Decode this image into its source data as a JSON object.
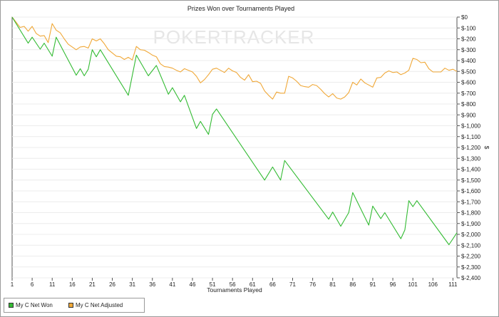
{
  "chart_data": {
    "type": "line",
    "title": "Prizes Won over Tournaments Played",
    "xlabel": "Tournaments Played",
    "ylabel": "$",
    "xlim": [
      1,
      112
    ],
    "ylim": [
      -2400,
      0
    ],
    "x_ticks": [
      1,
      6,
      11,
      16,
      21,
      26,
      31,
      36,
      41,
      46,
      51,
      56,
      61,
      66,
      71,
      76,
      81,
      86,
      91,
      96,
      101,
      106,
      111
    ],
    "y_ticks": [
      0,
      -100,
      -200,
      -300,
      -400,
      -500,
      -600,
      -700,
      -800,
      -900,
      -1000,
      -1100,
      -1200,
      -1300,
      -1400,
      -1500,
      -1600,
      -1700,
      -1800,
      -1900,
      -2000,
      -2100,
      -2200,
      -2300,
      -2400
    ],
    "y_tick_labels": [
      "$0",
      "$-100",
      "$-200",
      "$-300",
      "$-400",
      "$-500",
      "$-600",
      "$-700",
      "$-800",
      "$-900",
      "$-1,000",
      "$-1,100",
      "$-1,200",
      "$-1,300",
      "$-1,400",
      "$-1,500",
      "$-1,600",
      "$-1,700",
      "$-1,800",
      "$-1,900",
      "$-2,000",
      "$-2,100",
      "$-2,200",
      "$-2,300",
      "$-2,400"
    ],
    "watermark": "POKERTRACKER",
    "grid": true,
    "legend_position": "bottom-left",
    "series": [
      {
        "name": "My C Net Won",
        "color": "#33bb33",
        "points": [
          [
            1,
            0
          ],
          [
            5,
            -240
          ],
          [
            6,
            -185
          ],
          [
            8,
            -295
          ],
          [
            9,
            -240
          ],
          [
            11,
            -360
          ],
          [
            12,
            -185
          ],
          [
            17,
            -535
          ],
          [
            18,
            -475
          ],
          [
            19,
            -540
          ],
          [
            20,
            -480
          ],
          [
            21,
            -300
          ],
          [
            22,
            -365
          ],
          [
            23,
            -300
          ],
          [
            30,
            -720
          ],
          [
            32,
            -350
          ],
          [
            35,
            -540
          ],
          [
            37,
            -445
          ],
          [
            40,
            -710
          ],
          [
            41,
            -650
          ],
          [
            43,
            -780
          ],
          [
            44,
            -720
          ],
          [
            47,
            -1025
          ],
          [
            48,
            -960
          ],
          [
            50,
            -1080
          ],
          [
            51,
            -895
          ],
          [
            52,
            -845
          ],
          [
            64,
            -1500
          ],
          [
            66,
            -1380
          ],
          [
            68,
            -1500
          ],
          [
            69,
            -1320
          ],
          [
            80,
            -1860
          ],
          [
            81,
            -1795
          ],
          [
            83,
            -1925
          ],
          [
            85,
            -1800
          ],
          [
            86,
            -1615
          ],
          [
            90,
            -1915
          ],
          [
            91,
            -1740
          ],
          [
            93,
            -1855
          ],
          [
            94,
            -1800
          ],
          [
            98,
            -2040
          ],
          [
            99,
            -1960
          ],
          [
            100,
            -1690
          ],
          [
            101,
            -1745
          ],
          [
            102,
            -1690
          ],
          [
            110,
            -2095
          ],
          [
            112,
            -1985
          ]
        ]
      },
      {
        "name": "My C Net Adjusted",
        "color": "#f0a838",
        "points": [
          [
            1,
            0
          ],
          [
            3,
            -95
          ],
          [
            4,
            -85
          ],
          [
            5,
            -130
          ],
          [
            6,
            -85
          ],
          [
            7,
            -150
          ],
          [
            8,
            -175
          ],
          [
            9,
            -170
          ],
          [
            10,
            -235
          ],
          [
            11,
            -60
          ],
          [
            12,
            -120
          ],
          [
            13,
            -145
          ],
          [
            14,
            -200
          ],
          [
            15,
            -250
          ],
          [
            16,
            -275
          ],
          [
            17,
            -300
          ],
          [
            18,
            -275
          ],
          [
            19,
            -270
          ],
          [
            20,
            -285
          ],
          [
            21,
            -200
          ],
          [
            22,
            -220
          ],
          [
            23,
            -200
          ],
          [
            24,
            -245
          ],
          [
            25,
            -300
          ],
          [
            26,
            -330
          ],
          [
            27,
            -360
          ],
          [
            28,
            -365
          ],
          [
            29,
            -390
          ],
          [
            30,
            -370
          ],
          [
            31,
            -395
          ],
          [
            32,
            -270
          ],
          [
            33,
            -300
          ],
          [
            34,
            -305
          ],
          [
            35,
            -325
          ],
          [
            36,
            -350
          ],
          [
            37,
            -365
          ],
          [
            38,
            -430
          ],
          [
            39,
            -455
          ],
          [
            40,
            -460
          ],
          [
            41,
            -470
          ],
          [
            42,
            -490
          ],
          [
            43,
            -505
          ],
          [
            44,
            -475
          ],
          [
            45,
            -490
          ],
          [
            46,
            -505
          ],
          [
            47,
            -545
          ],
          [
            48,
            -605
          ],
          [
            49,
            -575
          ],
          [
            50,
            -530
          ],
          [
            51,
            -480
          ],
          [
            52,
            -470
          ],
          [
            53,
            -490
          ],
          [
            54,
            -510
          ],
          [
            55,
            -470
          ],
          [
            56,
            -495
          ],
          [
            57,
            -510
          ],
          [
            58,
            -555
          ],
          [
            59,
            -580
          ],
          [
            60,
            -530
          ],
          [
            61,
            -595
          ],
          [
            62,
            -590
          ],
          [
            63,
            -610
          ],
          [
            64,
            -680
          ],
          [
            65,
            -720
          ],
          [
            66,
            -755
          ],
          [
            67,
            -690
          ],
          [
            68,
            -700
          ],
          [
            69,
            -700
          ],
          [
            70,
            -545
          ],
          [
            71,
            -560
          ],
          [
            72,
            -590
          ],
          [
            73,
            -630
          ],
          [
            74,
            -640
          ],
          [
            75,
            -645
          ],
          [
            76,
            -620
          ],
          [
            77,
            -630
          ],
          [
            78,
            -665
          ],
          [
            79,
            -705
          ],
          [
            80,
            -735
          ],
          [
            81,
            -705
          ],
          [
            82,
            -745
          ],
          [
            83,
            -755
          ],
          [
            84,
            -735
          ],
          [
            85,
            -695
          ],
          [
            86,
            -600
          ],
          [
            87,
            -625
          ],
          [
            88,
            -570
          ],
          [
            89,
            -605
          ],
          [
            90,
            -625
          ],
          [
            91,
            -645
          ],
          [
            92,
            -560
          ],
          [
            93,
            -555
          ],
          [
            94,
            -515
          ],
          [
            95,
            -495
          ],
          [
            96,
            -510
          ],
          [
            97,
            -505
          ],
          [
            98,
            -530
          ],
          [
            99,
            -515
          ],
          [
            100,
            -490
          ],
          [
            101,
            -380
          ],
          [
            102,
            -390
          ],
          [
            103,
            -420
          ],
          [
            104,
            -415
          ],
          [
            105,
            -475
          ],
          [
            106,
            -505
          ],
          [
            107,
            -505
          ],
          [
            108,
            -505
          ],
          [
            109,
            -470
          ],
          [
            110,
            -490
          ],
          [
            111,
            -480
          ],
          [
            112,
            -500
          ]
        ]
      }
    ]
  }
}
